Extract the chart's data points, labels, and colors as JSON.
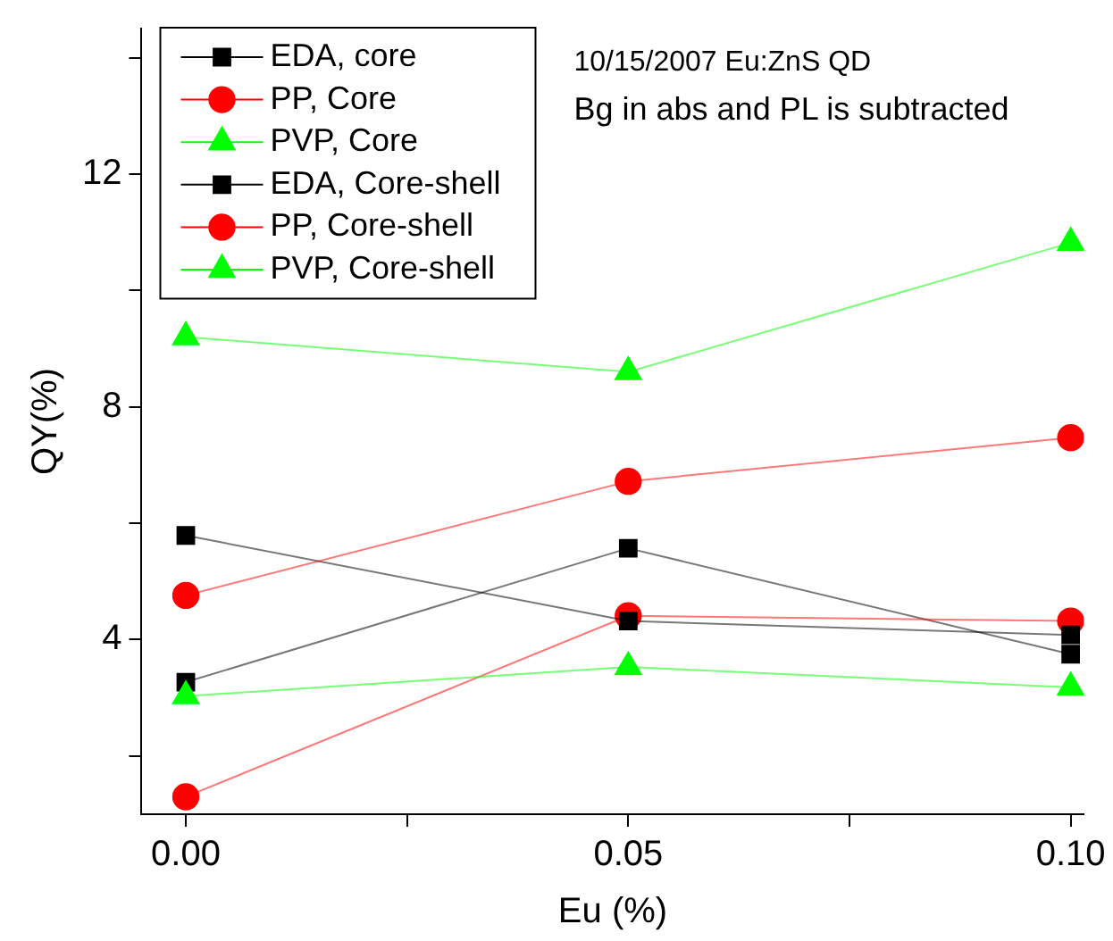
{
  "chart_data": {
    "type": "line",
    "xlabel": "Eu (%)",
    "ylabel": "QY(%)",
    "annotations": [
      "10/15/2007 Eu:ZnS QD",
      "Bg in abs and PL is subtracted"
    ],
    "x": [
      0,
      0.05,
      0.1
    ],
    "xlim": [
      -0.005,
      0.1015
    ],
    "xticks": [
      {
        "value": 0,
        "label": "0.00"
      },
      {
        "value": 0.025,
        "label": null
      },
      0.05,
      {
        "value": 0.075,
        "label": null
      },
      {
        "value": 0.1,
        "label": "0.10"
      }
    ],
    "ylim": [
      1,
      14.5
    ],
    "yticks": [
      {
        "value": 2,
        "label": null
      },
      4,
      {
        "value": 6,
        "label": null
      },
      8,
      {
        "value": 10,
        "label": null
      },
      12,
      {
        "value": 14,
        "label": null
      }
    ],
    "grid": false,
    "legend": "top left",
    "line_style": "solid",
    "series": [
      {
        "name": "EDA, core",
        "color": "#000000",
        "marker": "square",
        "values": [
          3.27,
          5.57,
          3.75
        ]
      },
      {
        "name": "PP, Core",
        "color": "#ff0000",
        "marker": "circle",
        "values": [
          1.3,
          4.41,
          4.32
        ]
      },
      {
        "name": "PVP, Core",
        "color": "#00ff00",
        "marker": "triangle",
        "values": [
          3.03,
          3.53,
          3.18
        ]
      },
      {
        "name": "EDA, Core-shell",
        "color": "#000000",
        "marker": "square",
        "values": [
          5.79,
          4.32,
          4.08
        ]
      },
      {
        "name": "PP, Core-shell",
        "color": "#ff0000",
        "marker": "circle",
        "values": [
          4.76,
          6.72,
          7.47
        ]
      },
      {
        "name": "PVP, Core-shell",
        "color": "#00ff00",
        "marker": "triangle",
        "values": [
          9.2,
          8.6,
          10.82
        ]
      }
    ]
  }
}
